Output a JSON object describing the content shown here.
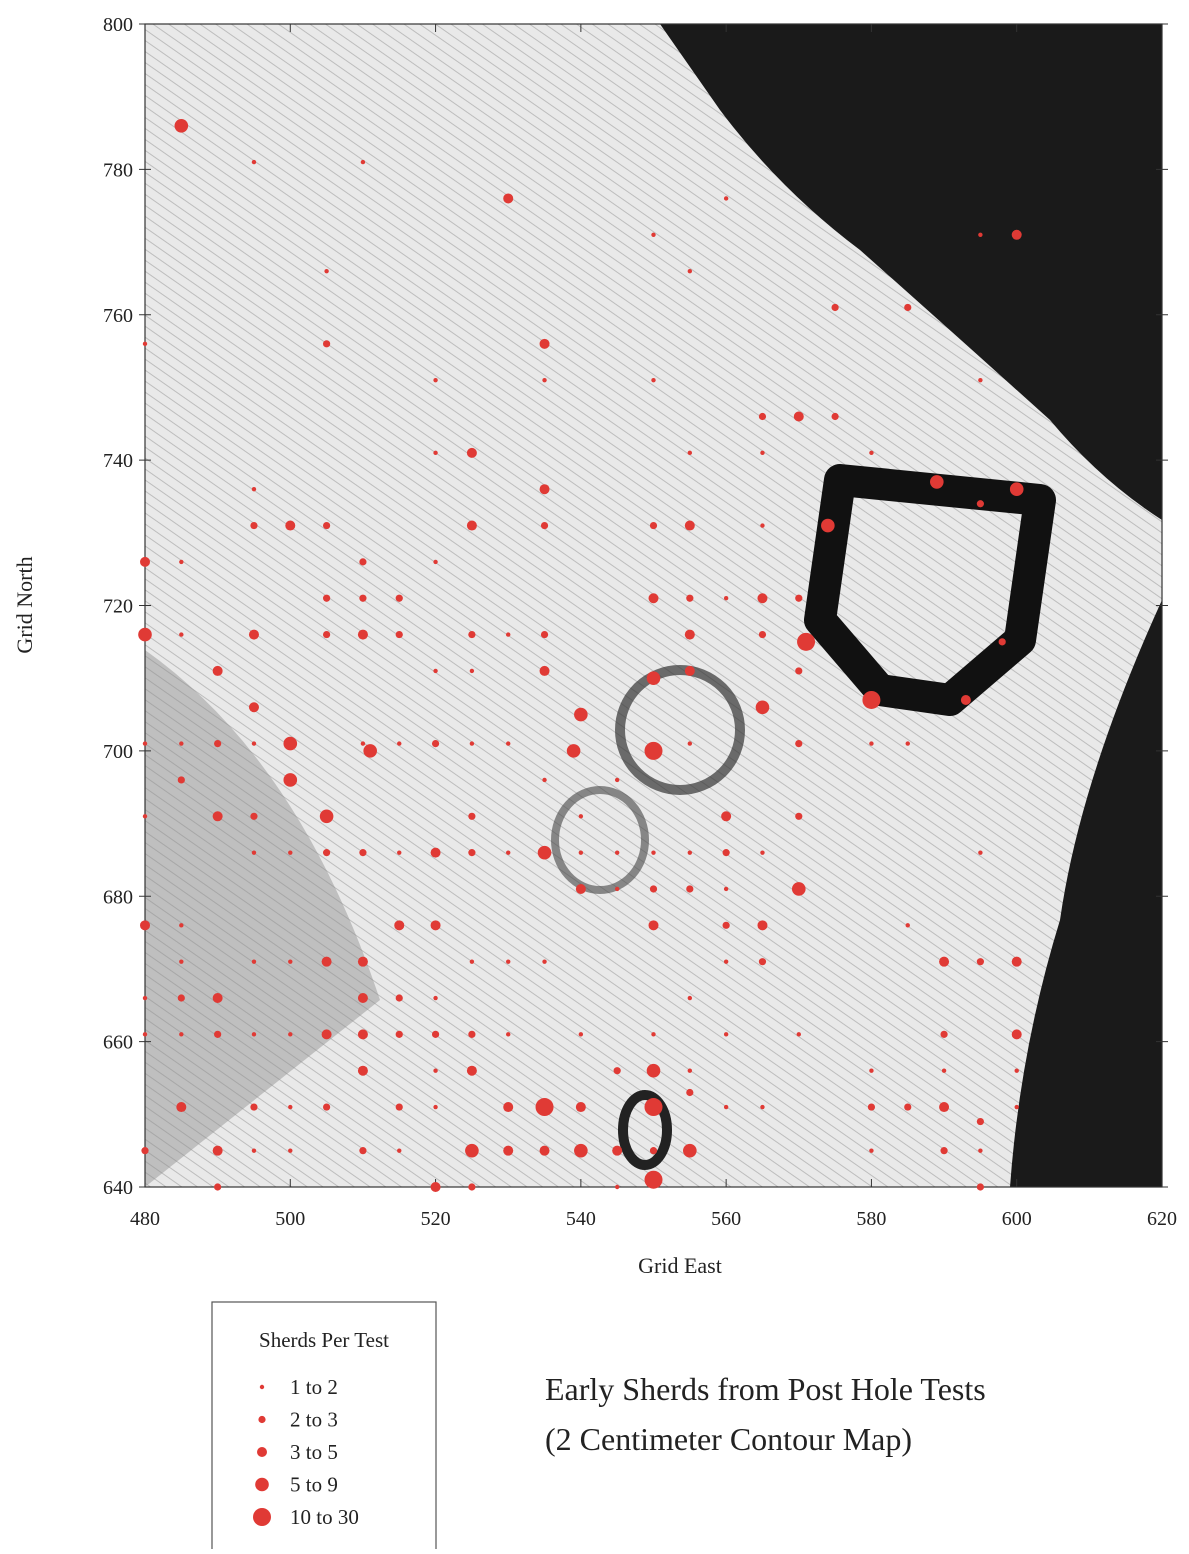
{
  "chart_data": {
    "type": "scatter",
    "xlabel": "Grid East",
    "ylabel": "Grid North",
    "annotations": [
      "Early Sherds from Post Hole Tests",
      "(2 Centimeter Contour Map)"
    ],
    "legend_title": "Sherds Per Test",
    "legend": "below-left",
    "xlim": [
      480,
      620
    ],
    "ylim": [
      640,
      800
    ],
    "xticks": [
      480,
      500,
      520,
      540,
      560,
      580,
      600,
      620
    ],
    "yticks": [
      640,
      660,
      680,
      700,
      720,
      740,
      760,
      780,
      800
    ],
    "grid": false,
    "series": [
      {
        "name": "1 to 2",
        "color": "#e03a35",
        "x": [
          495,
          510,
          550,
          595,
          560,
          555,
          505,
          480,
          520,
          535,
          550,
          595,
          520,
          555,
          565,
          580,
          495,
          485,
          520,
          565,
          560,
          485,
          530,
          520,
          525,
          480,
          485,
          495,
          510,
          515,
          525,
          530,
          555,
          580,
          585,
          535,
          545,
          480,
          540,
          495,
          500,
          515,
          530,
          540,
          545,
          550,
          555,
          565,
          595,
          545,
          560,
          485,
          585,
          485,
          495,
          500,
          525,
          530,
          535,
          560,
          480,
          520,
          555,
          480,
          485,
          495,
          500,
          530,
          540,
          550,
          560,
          570,
          520,
          555,
          580,
          590,
          600,
          500,
          520,
          560,
          565,
          600,
          495,
          500,
          515,
          580,
          595,
          545
        ],
        "y": [
          781,
          781,
          771,
          771,
          776,
          766,
          766,
          756,
          751,
          751,
          751,
          751,
          741,
          741,
          741,
          741,
          736,
          726,
          726,
          731,
          721,
          716,
          716,
          711,
          711,
          701,
          701,
          701,
          701,
          701,
          701,
          701,
          701,
          701,
          701,
          696,
          696,
          691,
          691,
          686,
          686,
          686,
          686,
          686,
          686,
          686,
          686,
          686,
          686,
          681,
          681,
          676,
          676,
          671,
          671,
          671,
          671,
          671,
          671,
          671,
          666,
          666,
          666,
          661,
          661,
          661,
          661,
          661,
          661,
          661,
          661,
          661,
          656,
          656,
          656,
          656,
          656,
          651,
          651,
          651,
          651,
          651,
          645,
          645,
          645,
          645,
          645,
          640
        ]
      },
      {
        "name": "2 to 3",
        "color": "#e03a35",
        "x": [
          575,
          585,
          505,
          565,
          575,
          595,
          510,
          495,
          505,
          535,
          550,
          505,
          510,
          515,
          555,
          570,
          505,
          515,
          525,
          535,
          565,
          598,
          570,
          490,
          520,
          570,
          485,
          495,
          525,
          570,
          505,
          510,
          525,
          560,
          550,
          555,
          560,
          565,
          595,
          485,
          515,
          490,
          515,
          520,
          525,
          590,
          545,
          555,
          495,
          505,
          515,
          580,
          585,
          595,
          480,
          510,
          550,
          590,
          490,
          525,
          595
        ],
        "y": [
          761,
          761,
          756,
          746,
          746,
          734,
          726,
          731,
          731,
          731,
          731,
          721,
          721,
          721,
          721,
          721,
          716,
          716,
          716,
          716,
          716,
          715,
          711,
          701,
          701,
          701,
          696,
          691,
          691,
          691,
          686,
          686,
          686,
          686,
          681,
          681,
          676,
          671,
          671,
          666,
          666,
          661,
          661,
          661,
          661,
          661,
          656,
          653,
          651,
          651,
          651,
          651,
          651,
          649,
          645,
          645,
          645,
          645,
          640,
          640,
          640
        ]
      },
      {
        "name": "3 to 5",
        "color": "#e03a35",
        "x": [
          530,
          600,
          535,
          570,
          525,
          535,
          480,
          500,
          525,
          555,
          550,
          565,
          495,
          510,
          555,
          490,
          535,
          555,
          593,
          495,
          490,
          560,
          520,
          540,
          480,
          515,
          520,
          550,
          565,
          505,
          510,
          590,
          600,
          490,
          510,
          505,
          510,
          600,
          510,
          525,
          485,
          530,
          540,
          590,
          490,
          530,
          535,
          545,
          520
        ],
        "y": [
          776,
          771,
          756,
          746,
          741,
          736,
          726,
          731,
          731,
          731,
          721,
          721,
          716,
          716,
          716,
          711,
          711,
          711,
          707,
          706,
          691,
          691,
          686,
          681,
          676,
          676,
          676,
          676,
          676,
          671,
          671,
          671,
          671,
          666,
          666,
          661,
          661,
          661,
          656,
          656,
          651,
          651,
          651,
          651,
          645,
          645,
          645,
          645,
          640
        ]
      },
      {
        "name": "5 to 9",
        "color": "#e03a35",
        "x": [
          485,
          589,
          600,
          574,
          480,
          550,
          540,
          565,
          500,
          511,
          539,
          500,
          505,
          535,
          570,
          550,
          525,
          540,
          555
        ],
        "y": [
          786,
          737,
          736,
          731,
          716,
          710,
          705,
          706,
          701,
          700,
          700,
          696,
          691,
          686,
          681,
          656,
          645,
          645,
          645
        ]
      },
      {
        "name": "10 to 30",
        "color": "#e03a35",
        "x": [
          571,
          580,
          550,
          535,
          550,
          550
        ],
        "y": [
          715,
          707,
          700,
          651,
          651,
          641
        ]
      }
    ]
  }
}
